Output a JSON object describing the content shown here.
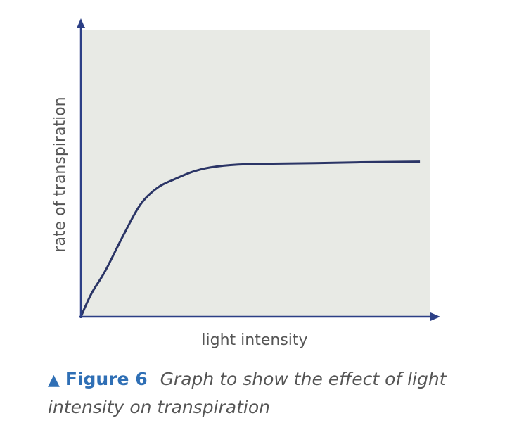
{
  "chart_data": {
    "type": "line",
    "title": "",
    "xlabel": "light intensity",
    "ylabel": "rate of transpiration",
    "xlim": [
      0,
      100
    ],
    "ylim": [
      0,
      100
    ],
    "grid": false,
    "axis_ticks": false,
    "series": [
      {
        "x": [
          0,
          3,
          7,
          12,
          17,
          22,
          27,
          32,
          37,
          45,
          55,
          67,
          80,
          97
        ],
        "y": [
          0,
          8,
          16,
          28,
          39,
          45,
          48,
          50.5,
          52,
          53,
          53.3,
          53.5,
          53.8,
          54
        ]
      }
    ],
    "colors": {
      "background": "#e8eae5",
      "curve": "#2b3566",
      "axes": "#2c3f86"
    }
  },
  "caption": {
    "marker": "▲",
    "label": "Figure 6",
    "text": "Graph to show the effect of light intensity on transpiration"
  }
}
